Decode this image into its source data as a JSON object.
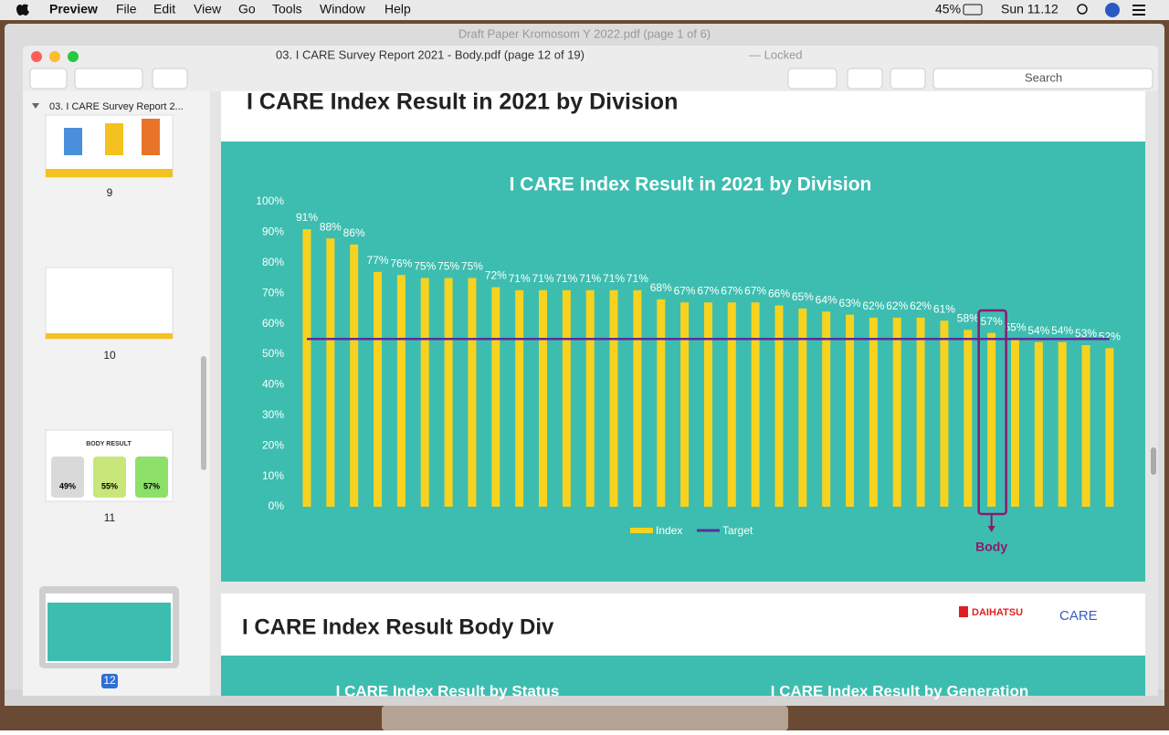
{
  "menubar": {
    "app": "Preview",
    "menus": [
      "File",
      "Edit",
      "View",
      "Go",
      "Tools",
      "Window",
      "Help"
    ],
    "battery": "45%",
    "clock": "Sun 11.12"
  },
  "background_window": {
    "title": "Draft Paper Kromosom Y 2022.pdf (page 1 of 6)"
  },
  "window": {
    "title": "03. I CARE Survey Report 2021 - Body.pdf (page 12 of 19)",
    "status": "— Locked",
    "search_placeholder": "Search"
  },
  "sidebar": {
    "document": "03. I CARE Survey Report 2...",
    "pages": [
      "9",
      "10",
      "11",
      "12"
    ],
    "thumbnail_11": {
      "title": "BODY RESULT",
      "values": [
        "49%",
        "55%",
        "57%"
      ]
    }
  },
  "page": {
    "heading": "I CARE Index Result in 2021 by  Division",
    "next_heading": "I CARE Index Result Body Div",
    "next_subtitles": [
      "I CARE Index Result by Status",
      "I CARE Index Result by Generation"
    ],
    "logos": [
      "DAIHATSU",
      "CARE"
    ]
  },
  "chart_data": {
    "type": "bar",
    "title": "I CARE Index Result in 2021 by Division",
    "series": [
      {
        "name": "Index",
        "color": "#f7d21e",
        "values": [
          91,
          88,
          86,
          77,
          76,
          75,
          75,
          75,
          72,
          71,
          71,
          71,
          71,
          71,
          71,
          68,
          67,
          67,
          67,
          67,
          66,
          65,
          64,
          63,
          62,
          62,
          62,
          61,
          58,
          57,
          55,
          54,
          54,
          53,
          52
        ],
        "value_labels": [
          "91%",
          "88%",
          "86%",
          "77%",
          "76%",
          "75%",
          "75%",
          "75%",
          "72%",
          "71%",
          "71%",
          "71%",
          "71%",
          "71%",
          "71%",
          "68%",
          "67%",
          "67%",
          "67%",
          "67%",
          "66%",
          "65%",
          "64%",
          "63%",
          "62%",
          "62%",
          "62%",
          "61%",
          "58%",
          "57%",
          "55%",
          "54%",
          "54%",
          "53%",
          "52%"
        ]
      },
      {
        "name": "Target",
        "color": "#5b2d9a",
        "values": [
          55
        ]
      }
    ],
    "ylim": [
      0,
      100
    ],
    "yticks": [
      {
        "value": 0,
        "label": "0%"
      },
      {
        "value": 10,
        "label": "10%"
      },
      {
        "value": 20,
        "label": "20%"
      },
      {
        "value": 30,
        "label": "30%"
      },
      {
        "value": 40,
        "label": "40%"
      },
      {
        "value": 50,
        "label": "50%"
      },
      {
        "value": 60,
        "label": "60%"
      },
      {
        "value": 70,
        "label": "70%"
      },
      {
        "value": 80,
        "label": "80%"
      },
      {
        "value": 90,
        "label": "90%"
      },
      {
        "value": 100,
        "label": "100%"
      }
    ],
    "annotation": "Body",
    "legend": "bottom"
  }
}
